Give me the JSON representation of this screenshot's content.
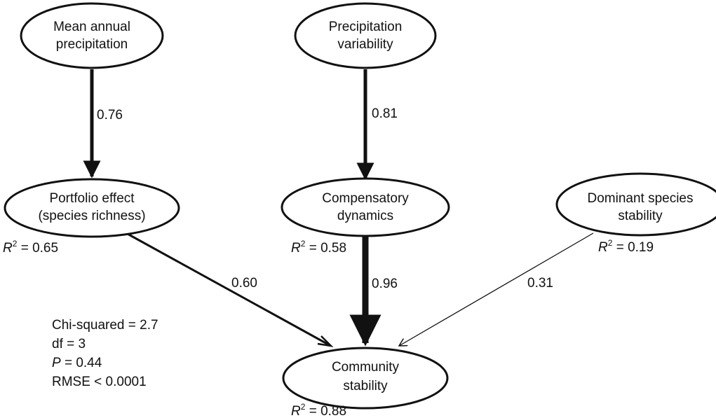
{
  "nodes": {
    "mean_annual_precipitation": {
      "line1": "Mean annual",
      "line2": "precipitation"
    },
    "precipitation_variability": {
      "line1": "Precipitation",
      "line2": "variability"
    },
    "portfolio_effect": {
      "line1": "Portfolio effect",
      "line2": "(species richness)",
      "r2_label": "R",
      "r2_sup": "2",
      "r2_value": " = 0.65"
    },
    "compensatory_dynamics": {
      "line1": "Compensatory",
      "line2": "dynamics",
      "r2_label": "R",
      "r2_sup": "2",
      "r2_value": " = 0.58"
    },
    "dominant_species_stability": {
      "line1": "Dominant species",
      "line2": "stability",
      "r2_label": "R",
      "r2_sup": "2",
      "r2_value": " = 0.19"
    },
    "community_stability": {
      "line1": "Community",
      "line2": "stability",
      "r2_label": "R",
      "r2_sup": "2",
      "r2_value": " = 0.88"
    }
  },
  "edges": [
    {
      "from": "Mean annual precipitation",
      "to": "Portfolio effect (species richness)",
      "coefficient": "0.76"
    },
    {
      "from": "Precipitation variability",
      "to": "Compensatory dynamics",
      "coefficient": "0.81"
    },
    {
      "from": "Portfolio effect (species richness)",
      "to": "Community stability",
      "coefficient": "0.60"
    },
    {
      "from": "Compensatory dynamics",
      "to": "Community stability",
      "coefficient": "0.96"
    },
    {
      "from": "Dominant species stability",
      "to": "Community stability",
      "coefficient": "0.31"
    }
  ],
  "fit_stats": {
    "chi_squared": "Chi-squared = 2.7",
    "df": "df = 3",
    "p_label": "P",
    "p_value": " = 0.44",
    "rmse": "RMSE < 0.0001"
  }
}
